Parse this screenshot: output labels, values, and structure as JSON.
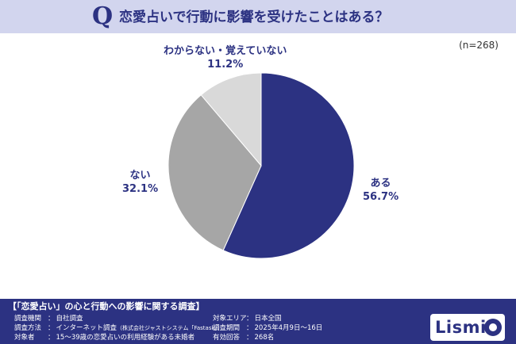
{
  "header": {
    "q_mark": "Q",
    "question": "恋愛占いで行動に影響を受けたことはある？"
  },
  "sample_size": "(n=268)",
  "chart_data": {
    "type": "pie",
    "title": "恋愛占いで行動に影響を受けたことはある？",
    "categories": [
      "ある",
      "ない",
      "わからない・覚えていない"
    ],
    "values": [
      56.7,
      32.1,
      11.2
    ],
    "value_labels": [
      "56.7%",
      "32.1%",
      "11.2%"
    ],
    "colors": [
      "#2c3282",
      "#a6a6a6",
      "#d9d9d9"
    ],
    "start": "top",
    "direction": "clockwise"
  },
  "footer": {
    "title": "【「恋愛占い」の心と行動への影響に関する調査】",
    "left": [
      {
        "key": "調査機関",
        "value": "自社調査"
      },
      {
        "key": "調査方法",
        "value": "インターネット調査",
        "note": "（株式会社ジャストシステム「Fastask」）"
      },
      {
        "key": "対象者",
        "value": "15～39歳の恋愛占いの利用経験がある未婚者"
      }
    ],
    "right": [
      {
        "key": "対象エリア",
        "value": "日本全国"
      },
      {
        "key": "調査期間",
        "value": "2025年4月9日～16日"
      },
      {
        "key": "有効回答",
        "value": "268名"
      }
    ],
    "separator": "：",
    "logo_text": "Lismi"
  }
}
